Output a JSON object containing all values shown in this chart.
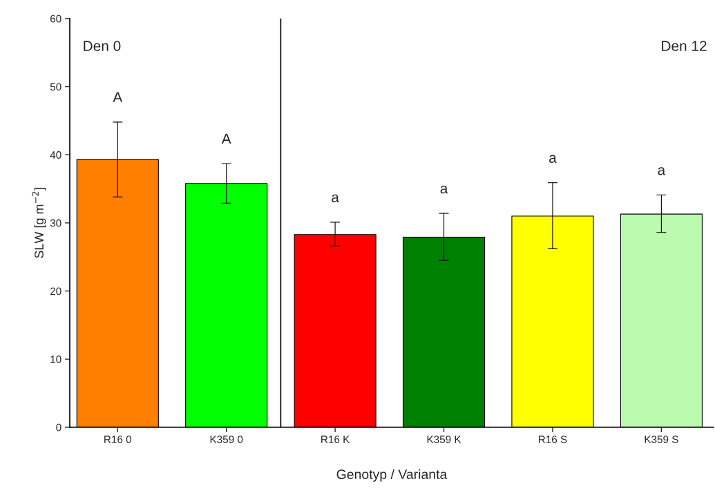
{
  "chart_data": {
    "type": "bar",
    "xlabel": "Genotyp / Varianta",
    "ylabel": "SLW [g m$^{−2}$]",
    "categories": [
      "R16 0",
      "K359 0",
      "R16 K",
      "K359 K",
      "R16 S",
      "K359 S"
    ],
    "values": [
      39.3,
      35.8,
      28.3,
      27.9,
      31.0,
      31.3
    ],
    "colors": [
      "#ff8000",
      "#00ff00",
      "#ff0000",
      "#008000",
      "#ffff00",
      "#bbfbaf"
    ],
    "errors": [
      [
        33.8,
        44.8
      ],
      [
        32.9,
        38.7
      ],
      [
        26.6,
        30.1
      ],
      [
        24.5,
        31.4
      ],
      [
        26.2,
        35.9
      ],
      [
        28.6,
        34.1
      ]
    ],
    "ylim": [
      0,
      60
    ],
    "yticks": [
      0,
      10,
      20,
      30,
      40,
      50,
      60
    ],
    "annotations": [
      "Den 0",
      "Den 12",
      "A",
      "A",
      "a",
      "a",
      "a",
      "a"
    ],
    "grid": false,
    "legend": false
  }
}
